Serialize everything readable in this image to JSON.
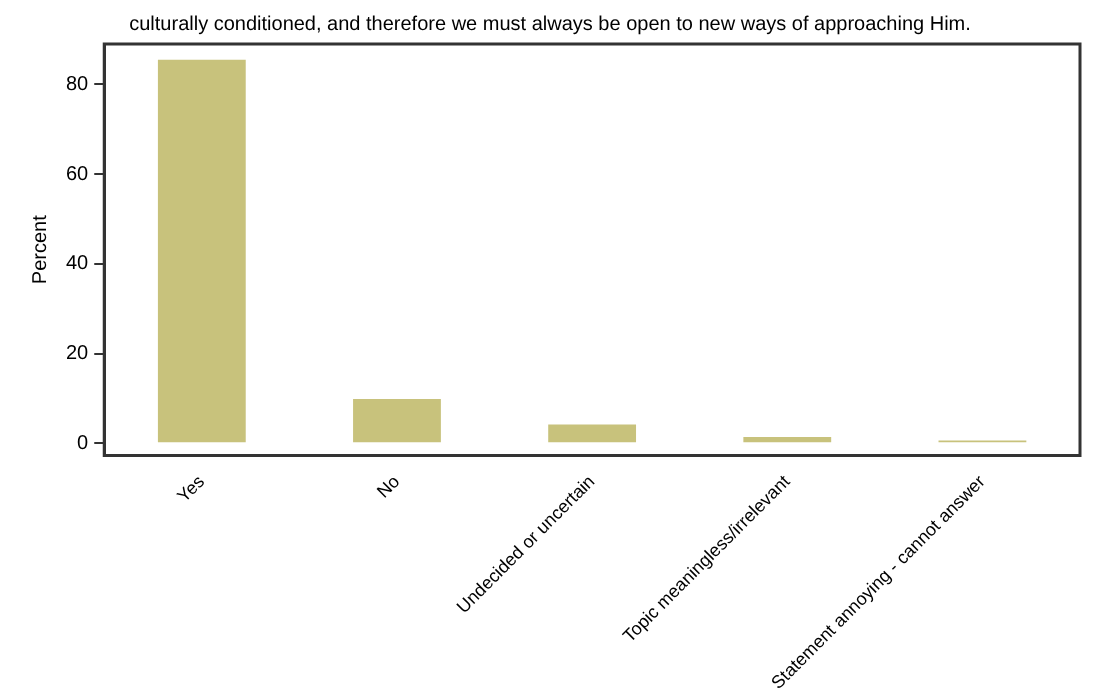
{
  "chart_data": {
    "type": "bar",
    "title": "culturally conditioned, and therefore we must always be open to new ways of approaching Him.",
    "ylabel": "Percent",
    "categories": [
      "Yes",
      "No",
      "Undecided or uncertain",
      "Topic meaningless/irrelevant",
      "Statement annoying - cannot answer"
    ],
    "values": [
      85.5,
      9.9,
      4.2,
      1.4,
      0.6
    ],
    "color": "#c8c27c",
    "ylim": [
      -2.7,
      89
    ],
    "yticks": [
      0,
      20,
      40,
      60,
      80
    ],
    "grid": false,
    "legend": false
  }
}
